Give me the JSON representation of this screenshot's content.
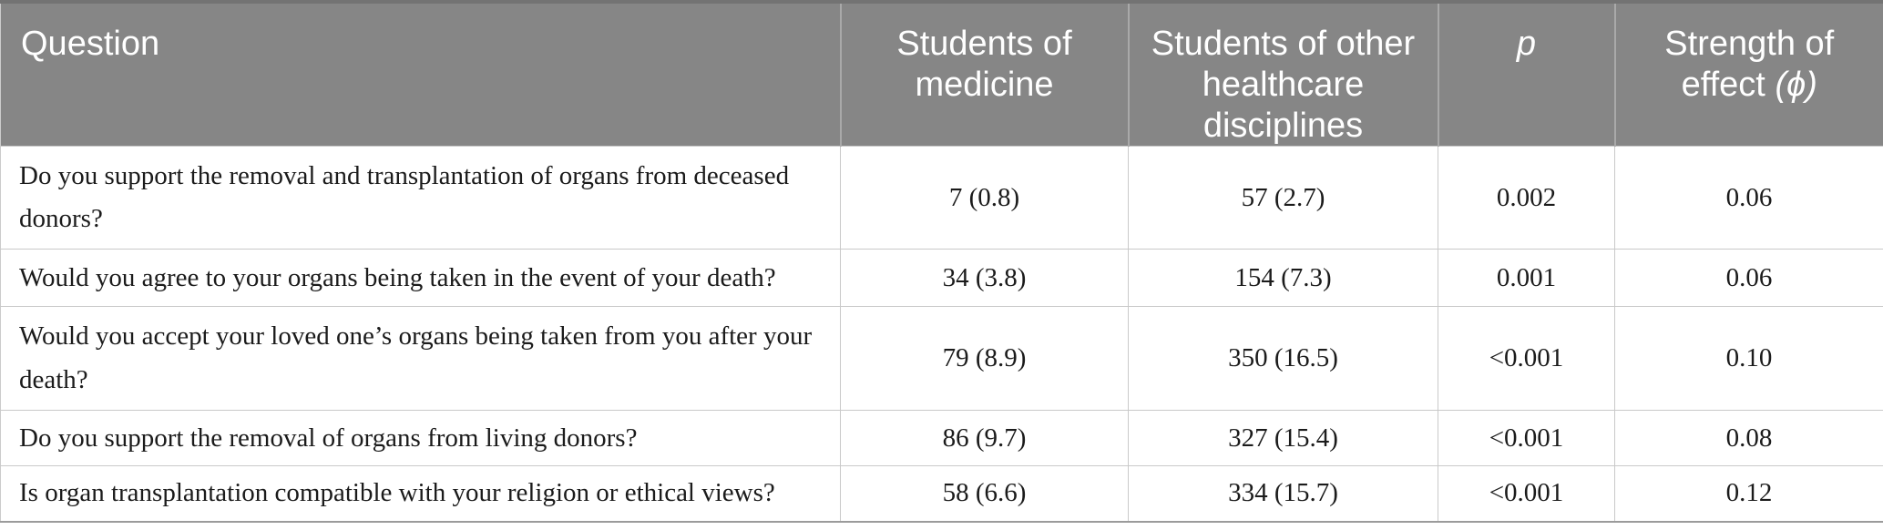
{
  "table": {
    "columns": [
      {
        "id": "question",
        "label": "Question"
      },
      {
        "id": "med",
        "label": "Students of\nmedicine"
      },
      {
        "id": "other",
        "label": "Students of other\nhealthcare\ndisciplines"
      },
      {
        "id": "p",
        "label": "p"
      },
      {
        "id": "phi",
        "label": "Strength of\neffect",
        "suffix": "(ϕ)"
      }
    ],
    "rows": [
      {
        "question": "Do you support the removal and transplantation of organs from deceased\ndonors?",
        "med": "7 (0.8)",
        "other": "57 (2.7)",
        "p": "0.002",
        "phi": "0.06"
      },
      {
        "question": "Would you agree to your organs being taken in the event of your death?",
        "med": "34 (3.8)",
        "other": "154 (7.3)",
        "p": "0.001",
        "phi": "0.06"
      },
      {
        "question": "Would you accept your loved one’s organs being taken from you after your\ndeath?",
        "med": "79 (8.9)",
        "other": "350 (16.5)",
        "p": "<0.001",
        "phi": "0.10"
      },
      {
        "question": "Do you support the removal of organs from living donors?",
        "med": "86 (9.7)",
        "other": "327 (15.4)",
        "p": "<0.001",
        "phi": "0.08"
      },
      {
        "question": "Is organ transplantation compatible with your religion or ethical views?",
        "med": "58 (6.6)",
        "other": "334 (15.7)",
        "p": "<0.001",
        "phi": "0.12"
      }
    ],
    "colors": {
      "header_bg": "#868686",
      "header_text": "#ffffff",
      "header_divider": "#a9a9a9",
      "body_border": "#c9c9c9",
      "body_text": "#1b1b1b"
    }
  }
}
